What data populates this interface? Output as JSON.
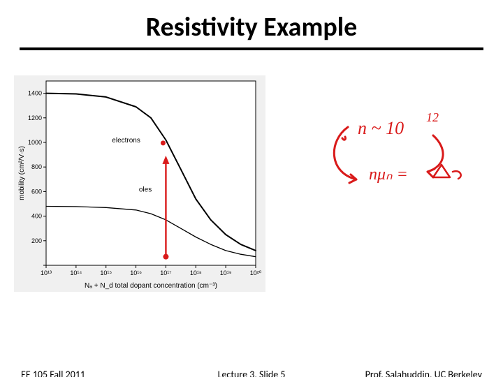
{
  "title": "Resistivity Example",
  "footer": {
    "left": "EE 105 Fall 2011",
    "center": "Lecture 3, Slide 5",
    "right": "Prof. Salahuddin, UC Berkeley"
  },
  "chart": {
    "type": "line",
    "ylabel": "mobility (cm²/V·s)",
    "xlabel": "Nₐ + N_d total dopant concentration (cm⁻³)",
    "label_fontsize": 10,
    "tick_fontsize": 9,
    "xlim": [
      13,
      20
    ],
    "ylim": [
      0,
      1500
    ],
    "xticks": [
      13,
      14,
      15,
      16,
      17,
      18,
      19,
      20
    ],
    "xticklabels": [
      "10¹³",
      "10¹⁴",
      "10¹⁵",
      "10¹⁶",
      "10¹⁷",
      "10¹⁸",
      "10¹⁹",
      "10²⁰"
    ],
    "yticks": [
      0,
      200,
      400,
      600,
      800,
      1000,
      1200,
      1400
    ],
    "xscale": "log",
    "yscale": "linear",
    "background_color": "#f0f0f0",
    "plot_bg": "#ffffff",
    "axis_color": "#000000",
    "series": [
      {
        "name": "electrons",
        "color": "#000000",
        "width": 2,
        "x": [
          13,
          14,
          15,
          16,
          16.5,
          17,
          17.5,
          18,
          18.5,
          19,
          19.5,
          20
        ],
        "y": [
          1400,
          1395,
          1370,
          1290,
          1200,
          1020,
          780,
          540,
          370,
          250,
          170,
          120
        ]
      },
      {
        "name": "holes",
        "color": "#000000",
        "width": 1.3,
        "x": [
          13,
          14,
          15,
          16,
          16.5,
          17,
          17.5,
          18,
          18.5,
          19,
          19.5,
          20
        ],
        "y": [
          480,
          478,
          470,
          450,
          420,
          370,
          300,
          230,
          170,
          120,
          90,
          70
        ]
      }
    ],
    "label_electrons": "electrons",
    "label_holes": "oles",
    "marker": {
      "x": 17,
      "yTop": 870,
      "yBottom": 70,
      "color": "#d91a1a",
      "width": 2.4,
      "dot_r": 4
    }
  },
  "handwriting": {
    "color": "#d91a1a",
    "stroke": 3,
    "texts": {
      "n_tilde": "n ~ 10",
      "exp": "12",
      "nmu": "nμₙ =",
      "const": ""
    }
  }
}
